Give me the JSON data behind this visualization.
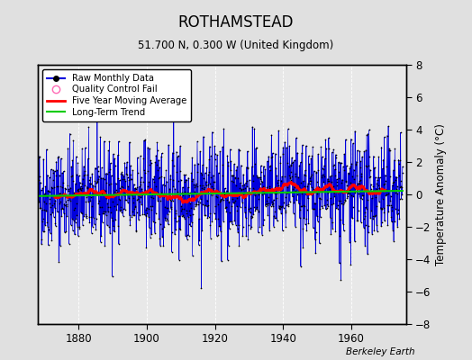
{
  "title": "ROTHAMSTEAD",
  "subtitle": "51.700 N, 0.300 W (United Kingdom)",
  "credit": "Berkeley Earth",
  "ylabel": "Temperature Anomaly (°C)",
  "xlim": [
    1868,
    1976
  ],
  "ylim": [
    -8,
    8
  ],
  "yticks": [
    -8,
    -6,
    -4,
    -2,
    0,
    2,
    4,
    6,
    8
  ],
  "xticks": [
    1880,
    1900,
    1920,
    1940,
    1960
  ],
  "start_year": 1868.0,
  "end_year": 1975.0,
  "n_months": 1284,
  "background_color": "#e0e0e0",
  "plot_bg_color": "#e8e8e8",
  "raw_line_color": "#0000dd",
  "raw_marker_color": "#000000",
  "moving_avg_color": "#ff0000",
  "trend_color": "#00cc00",
  "qc_color": "#ff69b4",
  "grid_color": "#ffffff",
  "seed": 42,
  "trend_slope": 0.003,
  "trend_intercept": -0.1,
  "noise_amplitude": 1.55,
  "moving_avg_period": 25
}
